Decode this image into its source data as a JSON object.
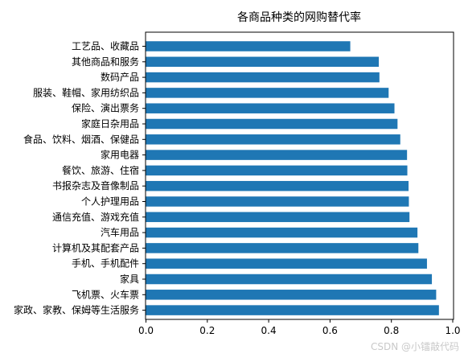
{
  "chart_data": {
    "type": "bar",
    "orientation": "horizontal",
    "title": "各商品种类的网购替代率",
    "xlabel": "",
    "ylabel": "",
    "xlim": [
      0,
      1.0
    ],
    "x_ticks": [
      "0.0",
      "0.2",
      "0.4",
      "0.6",
      "0.8",
      "1.0"
    ],
    "grid": false,
    "color": "#1f77b4",
    "categories": [
      "工艺品、收藏品",
      "其他商品和服务",
      "数码产品",
      "服装、鞋帽、家用纺织品",
      "保险、演出票务",
      "家庭日杂用品",
      "食品、饮料、烟酒、保健品",
      "家用电器",
      "餐饮、旅游、住宿",
      "书报杂志及音像制品",
      "个人护理用品",
      "通信充值、游戏充值",
      "汽车用品",
      "计算机及其配套产品",
      "手机、手机配件",
      "家具",
      "飞机票、火车票",
      "家政、家教、保姆等生活服务"
    ],
    "values": [
      0.666,
      0.759,
      0.761,
      0.791,
      0.81,
      0.82,
      0.829,
      0.851,
      0.852,
      0.856,
      0.857,
      0.859,
      0.885,
      0.888,
      0.916,
      0.932,
      0.946,
      0.955
    ]
  },
  "watermark": "CSDN @小镭敲代码"
}
